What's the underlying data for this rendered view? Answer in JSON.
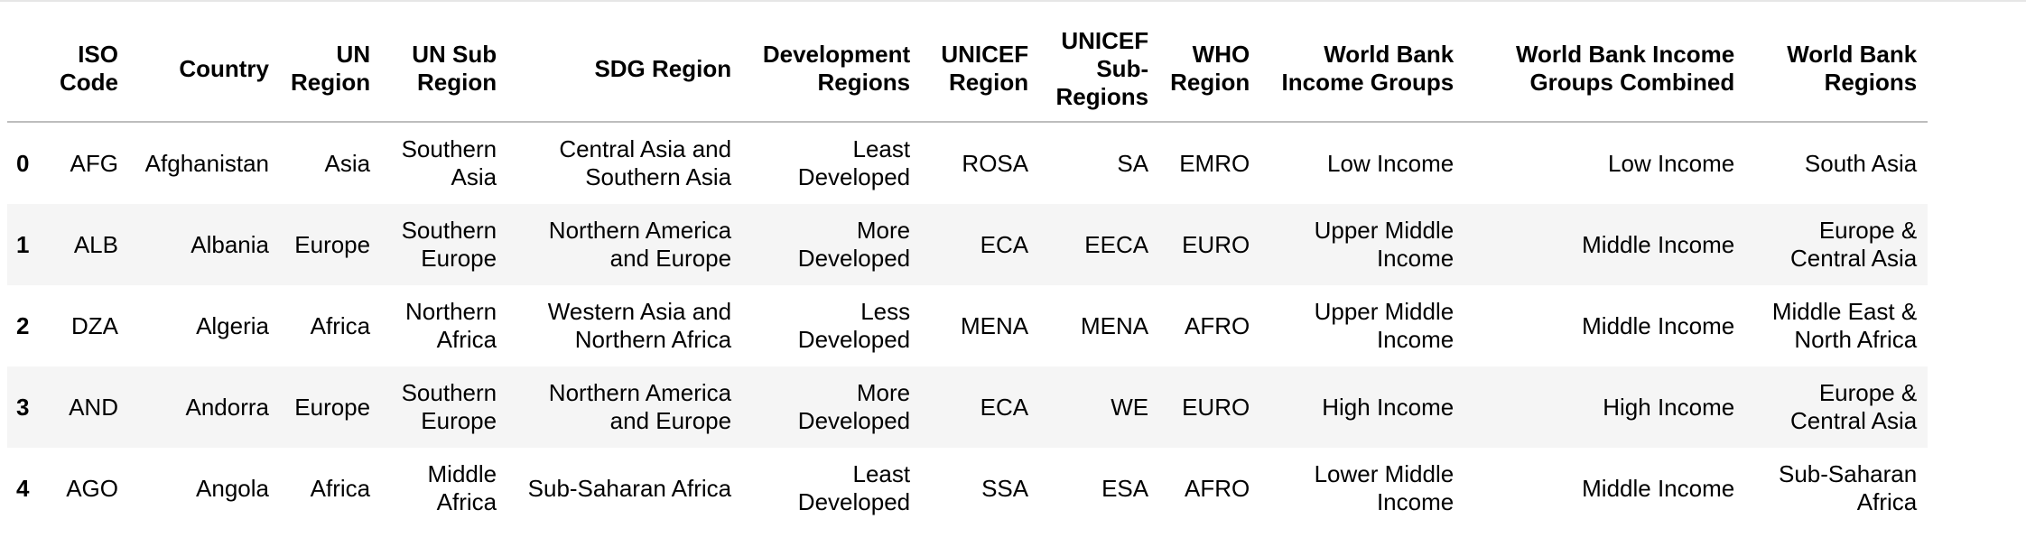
{
  "table": {
    "columns": [
      "ISO Code",
      "Country",
      "UN Region",
      "UN Sub Region",
      "SDG Region",
      "Development Regions",
      "UNICEF Region",
      "UNICEF Sub-Regions",
      "WHO Region",
      "World Bank Income Groups",
      "World Bank Income Groups Combined",
      "World Bank Regions"
    ],
    "rows": [
      {
        "index": "0",
        "cells": [
          "AFG",
          "Afghanistan",
          "Asia",
          "Southern Asia",
          "Central Asia and Southern Asia",
          "Least Developed",
          "ROSA",
          "SA",
          "EMRO",
          "Low Income",
          "Low Income",
          "South Asia"
        ]
      },
      {
        "index": "1",
        "cells": [
          "ALB",
          "Albania",
          "Europe",
          "Southern Europe",
          "Northern America and Europe",
          "More Developed",
          "ECA",
          "EECA",
          "EURO",
          "Upper Middle Income",
          "Middle Income",
          "Europe & Central Asia"
        ]
      },
      {
        "index": "2",
        "cells": [
          "DZA",
          "Algeria",
          "Africa",
          "Northern Africa",
          "Western Asia and Northern Africa",
          "Less Developed",
          "MENA",
          "MENA",
          "AFRO",
          "Upper Middle Income",
          "Middle Income",
          "Middle East & North Africa"
        ]
      },
      {
        "index": "3",
        "cells": [
          "AND",
          "Andorra",
          "Europe",
          "Southern Europe",
          "Northern America and Europe",
          "More Developed",
          "ECA",
          "WE",
          "EURO",
          "High Income",
          "High Income",
          "Europe & Central Asia"
        ]
      },
      {
        "index": "4",
        "cells": [
          "AGO",
          "Angola",
          "Africa",
          "Middle Africa",
          "Sub-Saharan Africa",
          "Least Developed",
          "SSA",
          "ESA",
          "AFRO",
          "Lower Middle Income",
          "Middle Income",
          "Sub-Saharan Africa"
        ]
      }
    ]
  }
}
